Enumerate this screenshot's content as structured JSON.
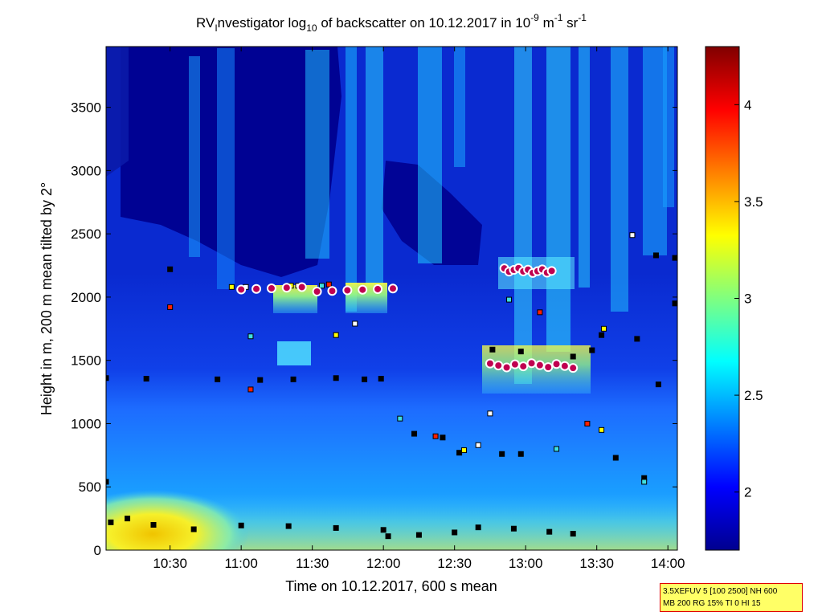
{
  "chart_data": {
    "type": "heatmap",
    "title": {
      "p1": "RV",
      "p1_sub": "I",
      "p2": "nvestigator log",
      "p2_sub": "10",
      "p3": " of backscatter on 10.12.2017 in 10",
      "p3_sup": "-9",
      "p4": " m",
      "p4_sup": "-1",
      "p5": " sr",
      "p5_sup": "-1"
    },
    "xlabel": "Time on 10.12.2017, 600 s mean",
    "ylabel": "Height in m, 200 m mean tilted by 2°",
    "x_ticks": [
      {
        "label": "10:30",
        "t": 630
      },
      {
        "label": "11:00",
        "t": 660
      },
      {
        "label": "11:30",
        "t": 690
      },
      {
        "label": "12:00",
        "t": 720
      },
      {
        "label": "12:30",
        "t": 750
      },
      {
        "label": "13:00",
        "t": 780
      },
      {
        "label": "13:30",
        "t": 810
      },
      {
        "label": "14:00",
        "t": 840
      }
    ],
    "xlim_minutes": [
      603,
      844
    ],
    "y_ticks": [
      0,
      500,
      1000,
      1500,
      2000,
      2500,
      3000,
      3500
    ],
    "ylim": [
      0,
      3980
    ],
    "colorbar": {
      "ticks": [
        2,
        2.5,
        3,
        3.5,
        4
      ],
      "tick_labels": [
        "2",
        "2.5",
        "3",
        "3.5",
        "4"
      ],
      "clim": [
        1.7,
        4.3
      ],
      "colormap": "jet"
    },
    "layers": {
      "aerosol_top_m": 1350,
      "surface_layer_m": 200,
      "cloud_tops": [
        {
          "t_start": 660,
          "t_end": 724,
          "h": 2060
        },
        {
          "t_start": 771,
          "t_end": 791,
          "h": 2210
        },
        {
          "t_start": 765,
          "t_end": 800,
          "h": 1460
        }
      ]
    },
    "series": [
      {
        "marker": "square",
        "points": [
          [
            603,
            1360
          ],
          [
            620,
            1355
          ],
          [
            650,
            1350
          ],
          [
            668,
            1345
          ],
          [
            682,
            1350
          ],
          [
            700,
            1360
          ],
          [
            712,
            1350
          ],
          [
            719,
            1355
          ],
          [
            603,
            540
          ],
          [
            605,
            220
          ],
          [
            612,
            250
          ],
          [
            623,
            200
          ],
          [
            640,
            165
          ],
          [
            660,
            195
          ],
          [
            680,
            190
          ],
          [
            700,
            175
          ],
          [
            720,
            160
          ],
          [
            722,
            110
          ],
          [
            735,
            120
          ],
          [
            750,
            140
          ],
          [
            760,
            180
          ],
          [
            775,
            170
          ],
          [
            790,
            145
          ],
          [
            800,
            130
          ],
          [
            733,
            920
          ],
          [
            745,
            890
          ],
          [
            752,
            770
          ],
          [
            770,
            760
          ],
          [
            778,
            760
          ],
          [
            766,
            1585
          ],
          [
            778,
            1570
          ],
          [
            800,
            1530
          ],
          [
            808,
            1580
          ],
          [
            812,
            1700
          ],
          [
            827,
            1670
          ],
          [
            836,
            1310
          ],
          [
            843,
            1950
          ],
          [
            818,
            730
          ],
          [
            830,
            570
          ],
          [
            835,
            2330
          ],
          [
            843,
            2310
          ],
          [
            630,
            2220
          ],
          [
            630,
            1920
          ],
          [
            656,
            2080
          ],
          [
            662,
            2080
          ],
          [
            664,
            1690
          ],
          [
            664,
            1270
          ],
          [
            681,
            2090
          ],
          [
            684,
            2090
          ],
          [
            694,
            2090
          ],
          [
            697,
            2100
          ],
          [
            700,
            1700
          ],
          [
            708,
            1790
          ],
          [
            727,
            1040
          ],
          [
            742,
            900
          ],
          [
            754,
            790
          ],
          [
            760,
            830
          ],
          [
            793,
            800
          ],
          [
            806,
            1000
          ],
          [
            812,
            950
          ],
          [
            765,
            1080
          ],
          [
            773,
            1980
          ],
          [
            786,
            1880
          ],
          [
            813,
            1750
          ],
          [
            825,
            2490
          ],
          [
            830,
            540
          ]
        ]
      }
    ]
  },
  "info_box": {
    "line1": "3.5XEFUV 5 [100 2500] NH 600",
    "line2": "MB 200 RG 15% TI 0 HI 15"
  },
  "colors": {
    "low": "#00008f",
    "high": "#800000",
    "cloud_marker": "#c8007a"
  }
}
